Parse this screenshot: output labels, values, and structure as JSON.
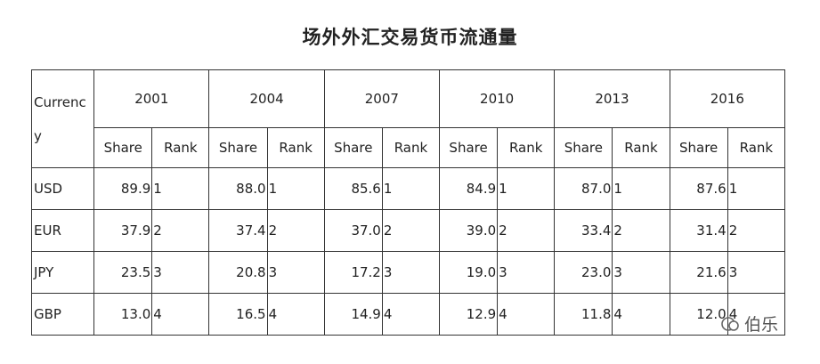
{
  "title": "场外外汇交易货币流通量",
  "table": {
    "currency_header": "Currency",
    "years": [
      "2001",
      "2004",
      "2007",
      "2010",
      "2013",
      "2016"
    ],
    "subheaders": [
      "Share",
      "Rank"
    ],
    "rows": [
      {
        "currency": "USD",
        "cells": [
          [
            "89.9",
            "1"
          ],
          [
            "88.0",
            "1"
          ],
          [
            "85.6",
            "1"
          ],
          [
            "84.9",
            "1"
          ],
          [
            "87.0",
            "1"
          ],
          [
            "87.6",
            "1"
          ]
        ]
      },
      {
        "currency": "EUR",
        "cells": [
          [
            "37.9",
            "2"
          ],
          [
            "37.4",
            "2"
          ],
          [
            "37.0",
            "2"
          ],
          [
            "39.0",
            "2"
          ],
          [
            "33.4",
            "2"
          ],
          [
            "31.4",
            "2"
          ]
        ]
      },
      {
        "currency": "JPY",
        "cells": [
          [
            "23.5",
            "3"
          ],
          [
            "20.8",
            "3"
          ],
          [
            "17.2",
            "3"
          ],
          [
            "19.0",
            "3"
          ],
          [
            "23.0",
            "3"
          ],
          [
            "21.6",
            "3"
          ]
        ]
      },
      {
        "currency": "GBP",
        "cells": [
          [
            "13.0",
            "4"
          ],
          [
            "16.5",
            "4"
          ],
          [
            "14.9",
            "4"
          ],
          [
            "12.9",
            "4"
          ],
          [
            "11.8",
            "4"
          ],
          [
            "12.0",
            "4"
          ]
        ]
      }
    ]
  },
  "watermark": "伯乐"
}
